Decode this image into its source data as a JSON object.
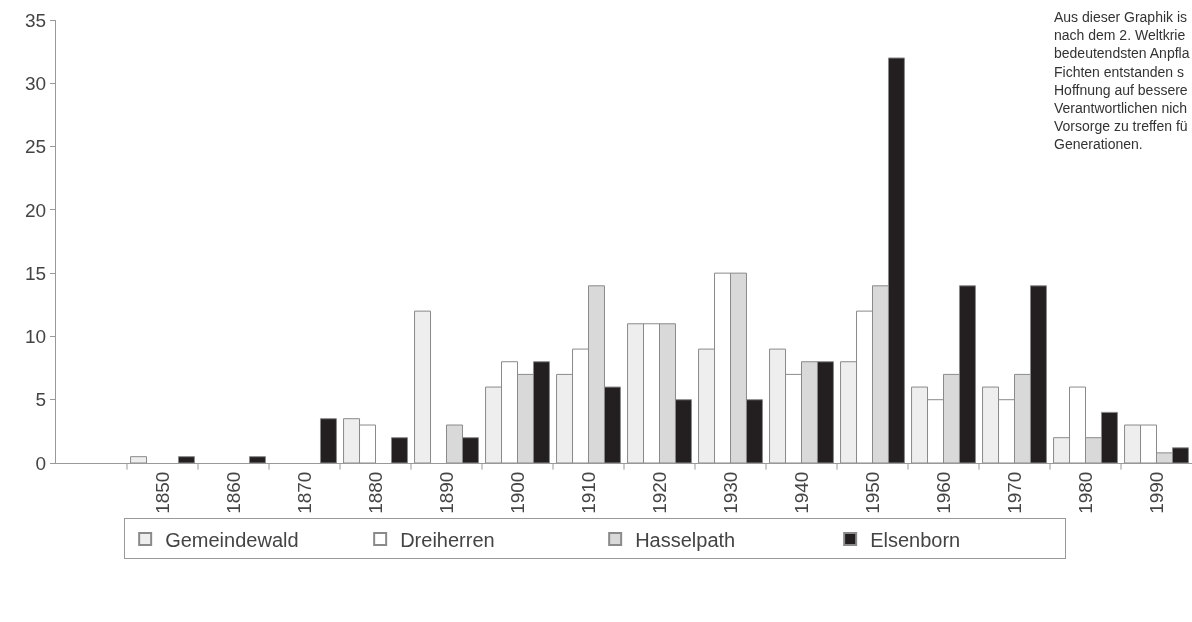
{
  "chart_data": {
    "type": "bar",
    "categories": [
      null,
      "1850",
      "1860",
      "1870",
      "1880",
      "1890",
      "1900",
      "1910",
      "1920",
      "1930",
      "1940",
      "1950",
      "1960",
      "1970",
      "1980",
      "1990"
    ],
    "series": [
      {
        "name": "Gemeindewald",
        "color": "#eeeeee",
        "values": [
          null,
          0.5,
          0,
          0,
          3.5,
          12,
          6,
          7,
          11,
          9,
          9,
          8,
          6,
          6,
          2,
          3
        ]
      },
      {
        "name": "Dreiherren",
        "color": "#ffffff",
        "values": [
          null,
          0,
          0,
          0,
          3,
          0,
          8,
          9,
          11,
          15,
          7,
          12,
          5,
          5,
          6,
          3
        ]
      },
      {
        "name": "Hasselpath",
        "color": "#d9d9d9",
        "values": [
          null,
          0,
          0,
          0,
          0,
          3,
          7,
          14,
          11,
          15,
          8,
          14,
          7,
          7,
          2,
          0.8
        ]
      },
      {
        "name": "Elsenborn",
        "color": "#231f20",
        "values": [
          null,
          0.5,
          0.5,
          3.5,
          2,
          2,
          8,
          6,
          5,
          5,
          8,
          32,
          14,
          14,
          4,
          1.2
        ]
      }
    ],
    "ylim": [
      0,
      35
    ],
    "yticks": [
      0,
      5,
      10,
      15,
      20,
      25,
      30,
      35
    ],
    "legend": "bottom",
    "annotations": [
      "Aus dieser Graphik is\nnach dem 2. Weltkrie\nbedeutendsten Anpfla\nFichten entstanden s\nHoffnung auf bessere\nVerantwortlichen nich\nVorsorge zu treffen fü\nGenerationen."
    ]
  }
}
